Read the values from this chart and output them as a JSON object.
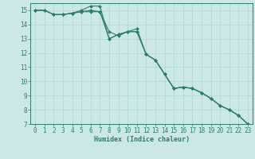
{
  "xlabel": "Humidex (Indice chaleur)",
  "bg_color": "#cce8e5",
  "grid_color": "#aed4d0",
  "line_color": "#2d7d6e",
  "series1_y": [
    15.0,
    15.0,
    14.7,
    14.7,
    14.8,
    15.0,
    15.3,
    15.3,
    13.0,
    13.3,
    13.5,
    13.7,
    11.9,
    11.5,
    10.5,
    9.5,
    9.6,
    9.5,
    9.2,
    8.8,
    8.3,
    8.0,
    7.6,
    7.0
  ],
  "series2_y": [
    15.0,
    15.0,
    14.7,
    14.7,
    14.8,
    14.9,
    15.0,
    14.9,
    13.5,
    13.2,
    13.5,
    13.5,
    11.9,
    11.5,
    10.5,
    9.5,
    9.6,
    9.5,
    9.2,
    8.8,
    8.3,
    8.0,
    7.6,
    7.0
  ],
  "series3_y": [
    15.0,
    15.0,
    14.7,
    14.7,
    14.8,
    14.9,
    14.9,
    14.9,
    13.0,
    13.3,
    13.5,
    13.5,
    11.9,
    11.5,
    10.5,
    9.5,
    9.6,
    9.5,
    9.2,
    8.8,
    8.3,
    8.0,
    7.6,
    7.0
  ],
  "x": [
    0,
    1,
    2,
    3,
    4,
    5,
    6,
    7,
    8,
    9,
    10,
    11,
    12,
    13,
    14,
    15,
    16,
    17,
    18,
    19,
    20,
    21,
    22,
    23
  ],
  "ylim": [
    7,
    15.5
  ],
  "xlim": [
    -0.5,
    23.5
  ],
  "yticks": [
    7,
    8,
    9,
    10,
    11,
    12,
    13,
    14,
    15
  ],
  "xticks": [
    0,
    1,
    2,
    3,
    4,
    5,
    6,
    7,
    8,
    9,
    10,
    11,
    12,
    13,
    14,
    15,
    16,
    17,
    18,
    19,
    20,
    21,
    22,
    23
  ],
  "xlabel_fontsize": 6.0,
  "tick_fontsize": 5.5,
  "linewidth": 0.8,
  "markersize": 2.0
}
